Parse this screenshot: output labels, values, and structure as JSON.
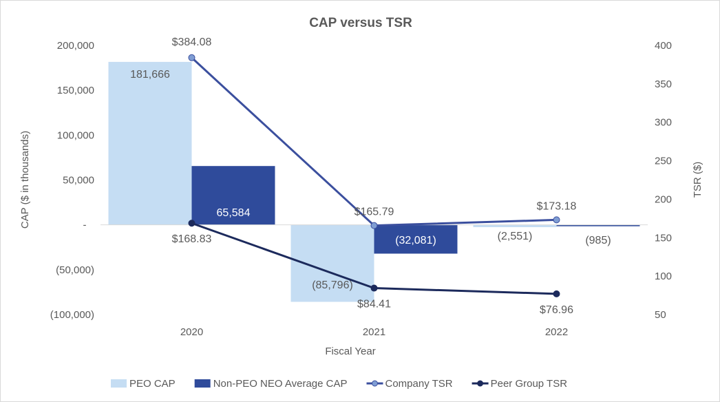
{
  "chart_data": {
    "type": "bar+line",
    "title": "CAP versus TSR",
    "xlabel": "Fiscal Year",
    "ylabel": "CAP ($ in thousands)",
    "y2label": "TSR ($)",
    "categories": [
      "2020",
      "2021",
      "2022"
    ],
    "ylim": [
      -100000,
      200000
    ],
    "y2lim": [
      50,
      400
    ],
    "yticks": [
      "200,000",
      "150,000",
      "100,000",
      "50,000",
      "-",
      "(50,000)",
      "(100,000)"
    ],
    "y2ticks": [
      "400",
      "350",
      "300",
      "250",
      "200",
      "150",
      "100",
      "50"
    ],
    "series": [
      {
        "name": "PEO CAP",
        "kind": "bar",
        "color": "#c5ddf3",
        "values": [
          181666,
          -85796,
          -2551
        ],
        "labels": [
          "181,666",
          "(85,796)",
          "(2,551)"
        ]
      },
      {
        "name": "Non-PEO NEO Average CAP",
        "kind": "bar",
        "color": "#2f4b9b",
        "values": [
          65584,
          -32081,
          -985
        ],
        "labels": [
          "65,584",
          "(32,081)",
          "(985)"
        ]
      },
      {
        "name": "Company TSR",
        "kind": "line",
        "axis": "right",
        "color": "#3b4f9e",
        "marker": "#7f9dd3",
        "values": [
          384.08,
          165.79,
          173.18
        ],
        "labels": [
          "$384.08",
          "$165.79",
          "$173.18"
        ]
      },
      {
        "name": "Peer Group TSR",
        "kind": "line",
        "axis": "right",
        "color": "#1c2a5c",
        "marker": "#1c2a5c",
        "values": [
          168.83,
          84.41,
          76.96
        ],
        "labels": [
          "$168.83",
          "$84.41",
          "$76.96"
        ]
      }
    ],
    "grid": false,
    "legend": "bottom"
  }
}
